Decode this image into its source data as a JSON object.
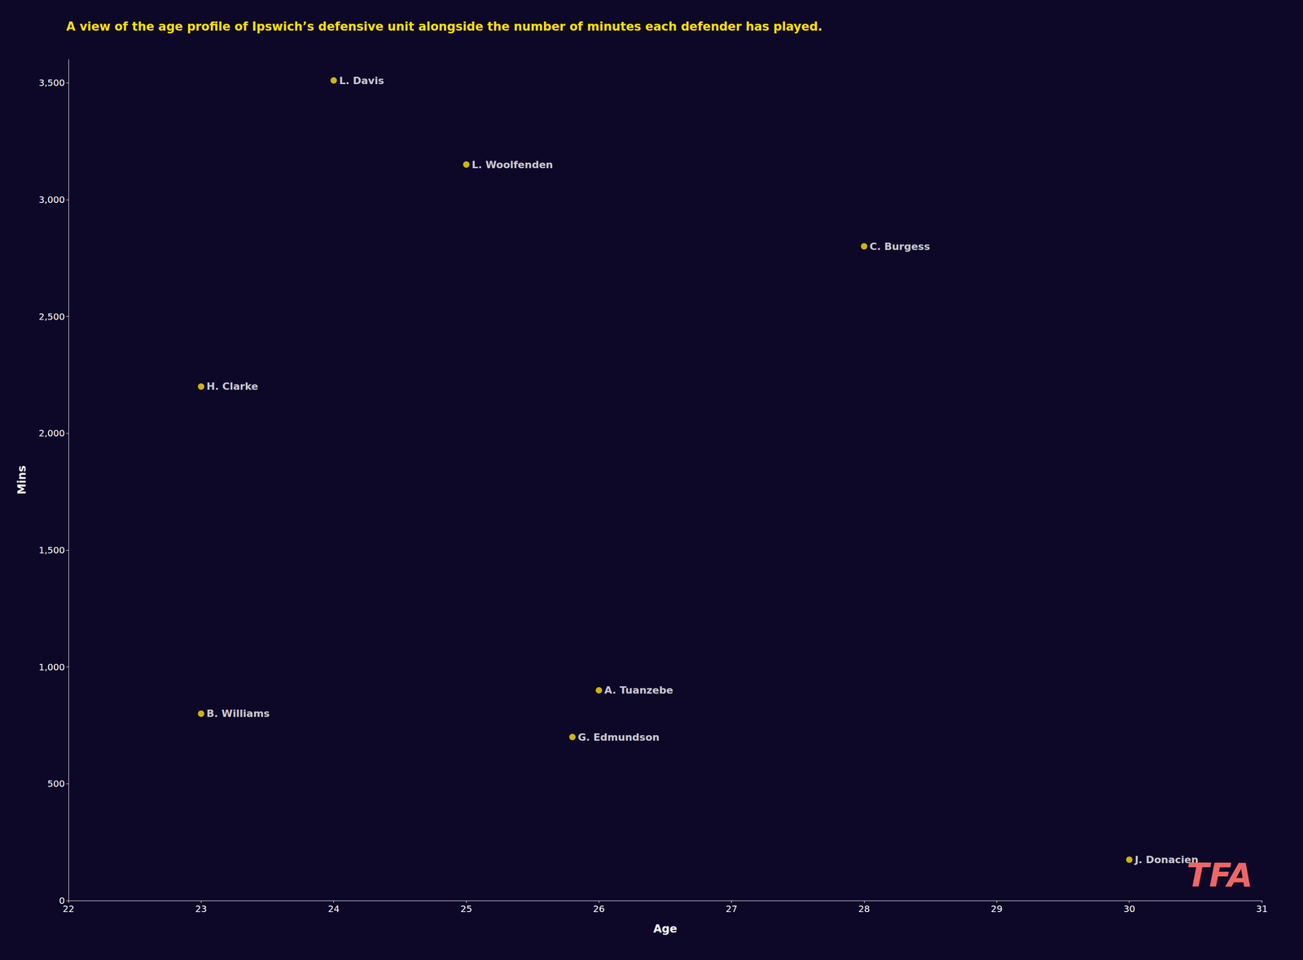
{
  "chart_data": {
    "type": "scatter",
    "title": "A view of the age profile of Ipswich’s defensive unit alongside the number of minutes each defender has played.",
    "xlabel": "Age",
    "ylabel": "Mins",
    "x": [
      24,
      25,
      28,
      23,
      26,
      25.8,
      23,
      30
    ],
    "values": [
      3510,
      3150,
      2800,
      2200,
      900,
      700,
      800,
      175
    ],
    "color": "#FFE000",
    "annotations": [
      {
        "text": "L. Davis",
        "x": 24,
        "y": 3510
      },
      {
        "text": "L. Woolfenden",
        "x": 25,
        "y": 3150
      },
      {
        "text": "C. Burgess",
        "x": 28,
        "y": 2800
      },
      {
        "text": "H. Clarke",
        "x": 23,
        "y": 2200
      },
      {
        "text": "A. Tuanzebe",
        "x": 26,
        "y": 900
      },
      {
        "text": "G. Edmundson",
        "x": 25.8,
        "y": 700
      },
      {
        "text": "B. Williams",
        "x": 23,
        "y": 800
      },
      {
        "text": "J. Donacien",
        "x": 30,
        "y": 175
      },
      {
        "text": "TFA"
      }
    ],
    "xlim": [
      22,
      31
    ],
    "ylim": [
      0,
      3600
    ],
    "xticks": [
      22,
      23,
      24,
      25,
      26,
      27,
      28,
      29,
      30,
      31
    ],
    "yticks": [
      0,
      500,
      1000,
      1500,
      2000,
      2500,
      3000,
      3500
    ],
    "grid": false
  }
}
